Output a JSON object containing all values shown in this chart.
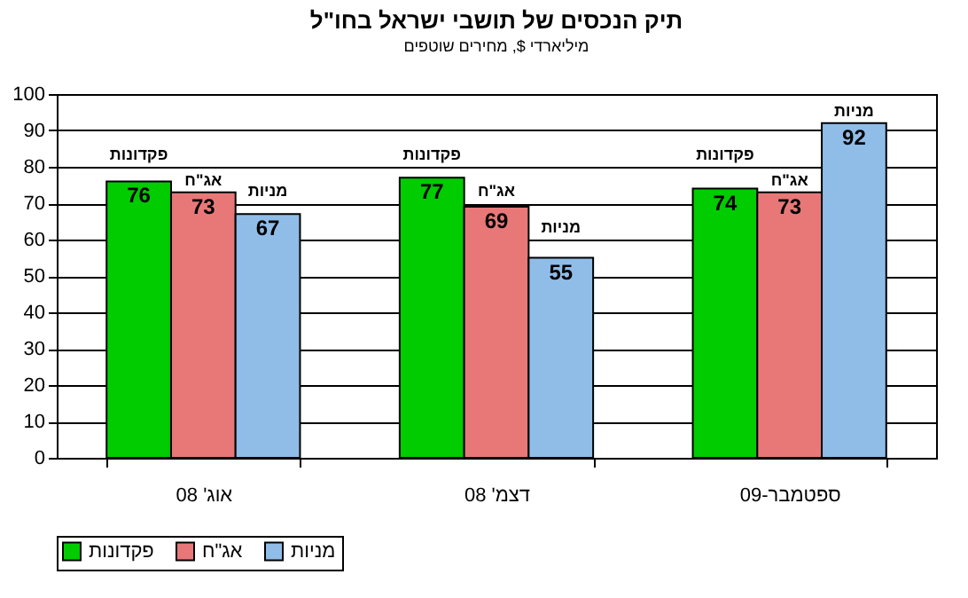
{
  "chart_data": {
    "type": "bar",
    "title": "תיק הנכסים של תושבי ישראל בחו\"ל",
    "subtitle": "מיליארדי $, מחירים שוטפים",
    "categories": [
      "אוג' 08",
      "דצמ' 08",
      "ספטמבר-09"
    ],
    "series": [
      {
        "name": "פקדונות",
        "color": "#00cc00",
        "values": [
          76,
          77,
          74
        ]
      },
      {
        "name": "אג\"ח",
        "color": "#e87878",
        "values": [
          73,
          69,
          73
        ]
      },
      {
        "name": "מניות",
        "color": "#90bce8",
        "values": [
          67,
          55,
          92
        ]
      }
    ],
    "ylim": [
      0,
      100
    ],
    "yticks": [
      0,
      10,
      20,
      30,
      40,
      50,
      60,
      70,
      80,
      90,
      100
    ],
    "grid": "y",
    "legend": "bottom",
    "data_labels": true
  }
}
